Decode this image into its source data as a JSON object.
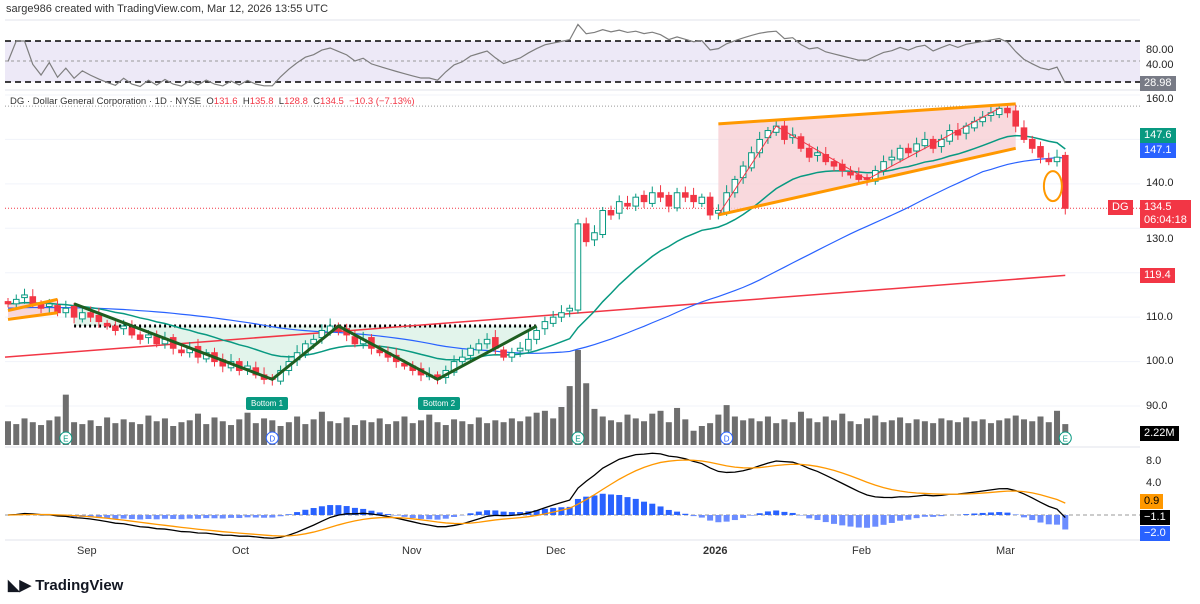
{
  "header": {
    "credit": "sarge986 created with TradingView.com, Mar 12, 2026 13:55 UTC"
  },
  "legend": {
    "symbol": "DG · Dollar General Corporation · 1D · NYSE",
    "o_label": "O",
    "o": "131.6",
    "h_label": "H",
    "h": "135.8",
    "l_label": "L",
    "l": "128.8",
    "c_label": "C",
    "c": "134.5",
    "change": "−10.3 (−7.13%)"
  },
  "axes": {
    "rsi": [
      "80.00",
      "40.00"
    ],
    "price": [
      "160.0",
      "140.0",
      "130.0",
      "110.0",
      "100.0",
      "90.0"
    ],
    "macd": [
      "8.0",
      "4.0"
    ],
    "x": [
      "Sep",
      "Oct",
      "Nov",
      "Dec",
      "2026",
      "Feb",
      "Mar"
    ]
  },
  "tags": {
    "rsi": "28.98",
    "ema20": "147.6",
    "sma50": "147.1",
    "price": "134.5",
    "countdown": "06:04:18",
    "symbol": "DG",
    "ma200": "119.4",
    "volume": "2.22M",
    "macd_signal": "0.9",
    "macd": "−1.1",
    "hist": "−2.0"
  },
  "annotations": {
    "bottom1": "Bottom 1",
    "bottom2": "Bottom 2",
    "event_e": "E",
    "event_d": "D"
  },
  "colors": {
    "up": "#089981",
    "down": "#f23645",
    "ema20": "#089981",
    "sma50": "#2962ff",
    "ma200": "#f23645",
    "channel": "#ff9800"
  },
  "brand": "TradingView",
  "chart_data": {
    "type": "candlestick",
    "symbol": "DG",
    "interval": "1D",
    "closes": [
      113,
      114,
      115,
      113,
      112,
      113,
      111,
      112,
      110,
      111,
      110,
      109,
      108,
      107,
      108,
      106,
      105,
      106,
      104,
      105,
      103,
      102,
      103,
      101,
      102,
      100,
      99,
      100,
      98,
      99,
      97,
      96,
      96,
      98,
      100,
      102,
      104,
      105,
      107,
      108,
      107,
      106,
      104,
      105,
      103,
      102,
      101,
      100,
      99,
      98,
      97,
      97,
      96,
      98,
      100,
      101,
      103,
      104,
      105,
      103,
      101,
      102,
      103,
      105,
      107,
      109,
      110,
      111,
      112,
      131,
      127,
      129,
      134,
      133,
      136,
      135,
      137,
      136,
      138,
      137,
      135,
      138,
      137,
      136,
      137,
      133,
      134,
      138,
      141,
      144,
      147,
      150,
      152,
      153,
      150,
      151,
      148,
      146,
      147,
      145,
      144,
      143,
      142,
      141,
      141,
      143,
      145,
      146,
      148,
      147,
      149,
      150,
      148,
      150,
      152,
      151,
      153,
      154,
      155,
      156,
      157,
      156,
      153,
      150,
      148,
      146,
      145,
      146,
      134.5
    ],
    "volumes_m": [
      2.5,
      2.2,
      2.8,
      2.4,
      2.1,
      2.6,
      3.0,
      5.3,
      2.4,
      2.2,
      2.6,
      2.0,
      2.9,
      2.3,
      2.7,
      2.4,
      2.2,
      3.1,
      2.5,
      2.8,
      2.0,
      2.4,
      2.6,
      3.3,
      2.2,
      2.9,
      2.5,
      2.1,
      2.7,
      3.4,
      2.3,
      2.8,
      2.6,
      2.0,
      2.4,
      3.0,
      2.2,
      2.7,
      3.5,
      2.5,
      2.3,
      2.9,
      2.1,
      2.6,
      2.4,
      2.8,
      2.2,
      2.5,
      3.0,
      2.3,
      2.6,
      3.2,
      2.4,
      2.1,
      2.7,
      2.5,
      2.2,
      2.9,
      2.3,
      2.6,
      2.4,
      2.8,
      2.5,
      3.0,
      3.4,
      3.6,
      2.8,
      4.0,
      6.2,
      10.0,
      6.5,
      3.8,
      3.0,
      2.6,
      2.4,
      3.2,
      2.8,
      2.5,
      3.3,
      3.6,
      2.4,
      3.9,
      2.7,
      1.5,
      2.0,
      2.3,
      3.2,
      4.2,
      3.0,
      2.6,
      2.8,
      2.5,
      3.0,
      2.3,
      2.7,
      2.4,
      3.5,
      2.8,
      2.4,
      3.0,
      2.6,
      3.3,
      2.5,
      2.2,
      2.8,
      3.1,
      2.4,
      2.6,
      2.9,
      2.3,
      2.7,
      2.5,
      2.3,
      2.8,
      2.6,
      2.4,
      2.9,
      2.5,
      2.7,
      2.3,
      2.6,
      2.8,
      3.1,
      2.7,
      2.5,
      3.0,
      2.4,
      3.6,
      2.2
    ],
    "ma200_start": 101,
    "ma200_end": 119.4,
    "price_range": [
      88,
      162
    ],
    "rsi_levels": [
      70,
      50,
      30
    ],
    "macd_range": [
      -4,
      9
    ]
  }
}
